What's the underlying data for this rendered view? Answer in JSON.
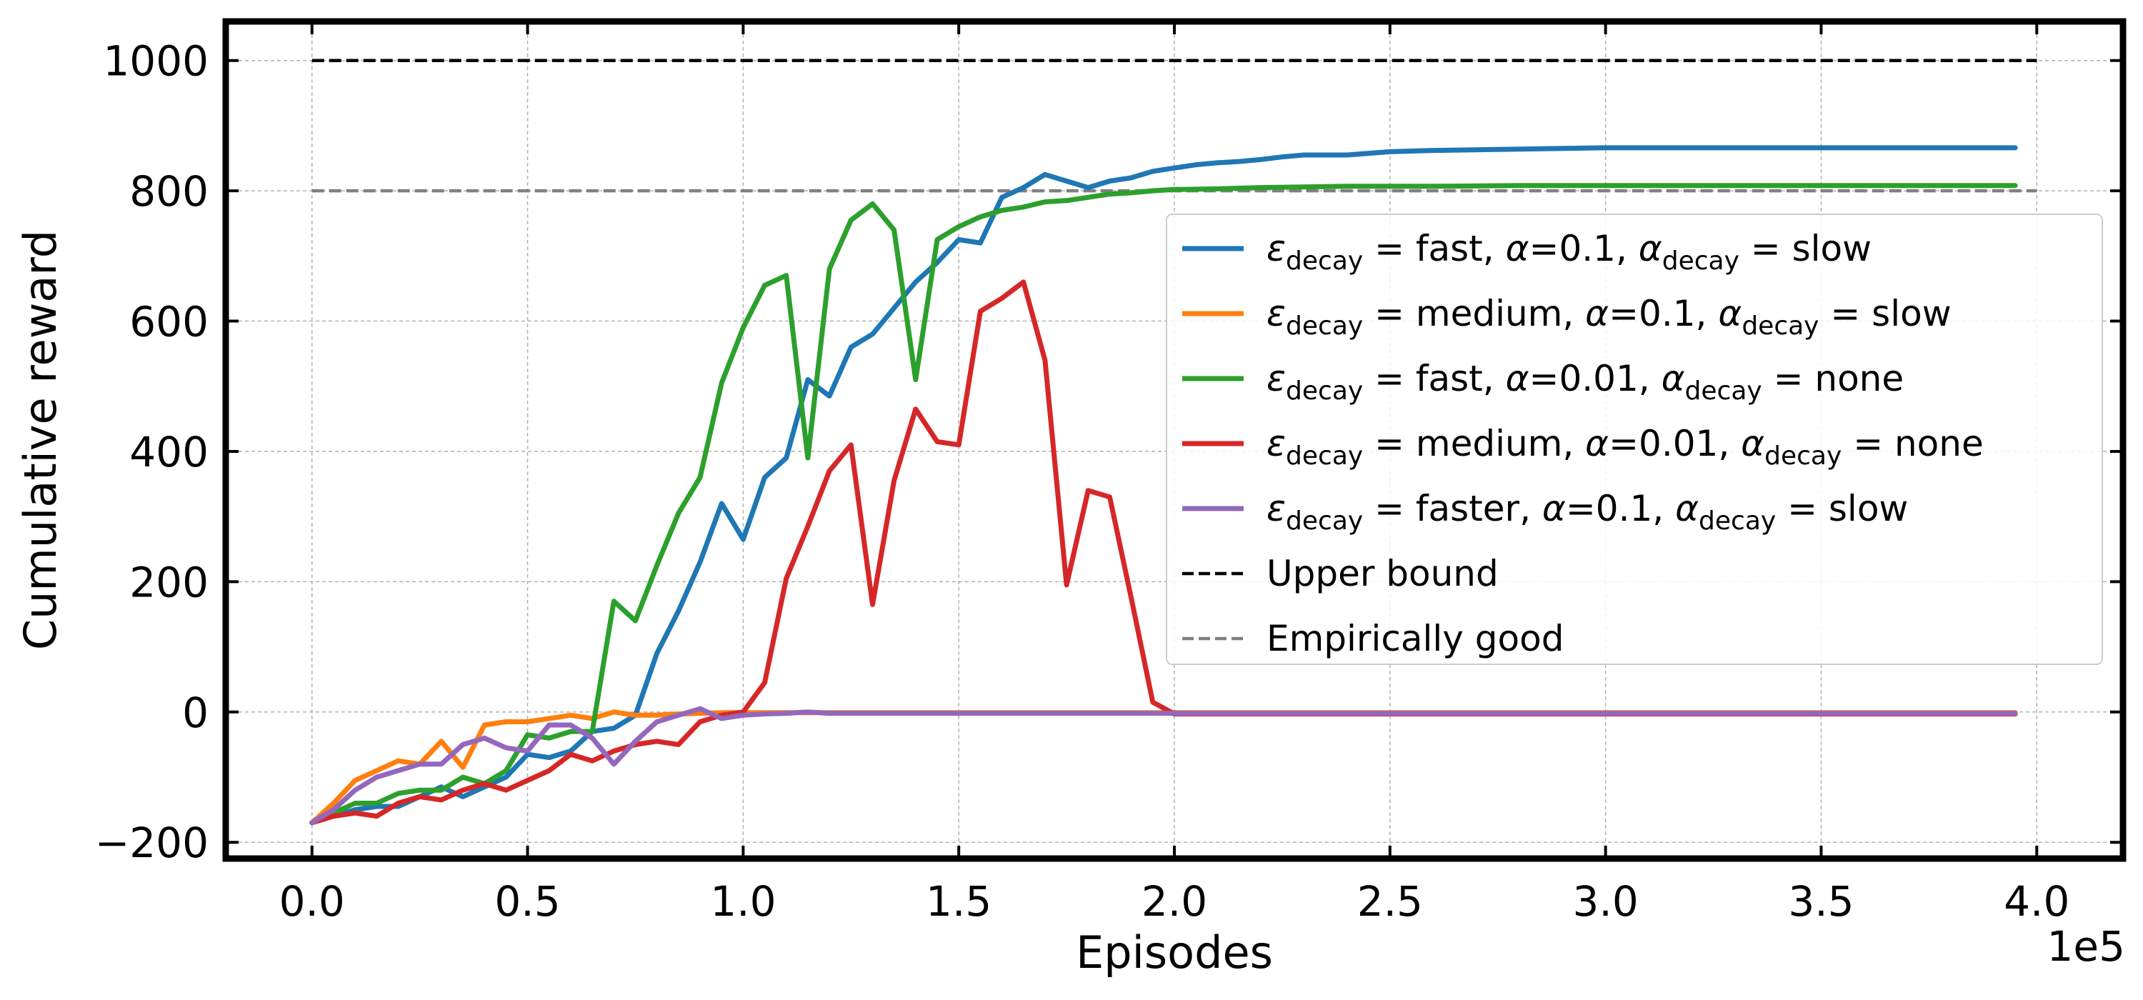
{
  "chart_data": {
    "type": "line",
    "xlabel": "Episodes",
    "ylabel": "Cumulative reward",
    "x_offset_label": "1e5",
    "xlim": [
      -0.2,
      4.2
    ],
    "ylim": [
      -225,
      1060
    ],
    "xticks": [
      0.0,
      0.5,
      1.0,
      1.5,
      2.0,
      2.5,
      3.0,
      3.5,
      4.0
    ],
    "xtick_labels": [
      "0.0",
      "0.5",
      "1.0",
      "1.5",
      "2.0",
      "2.5",
      "3.0",
      "3.5",
      "4.0"
    ],
    "yticks": [
      -200,
      0,
      200,
      400,
      600,
      800,
      1000
    ],
    "ytick_labels": [
      "−200",
      "0",
      "200",
      "400",
      "600",
      "800",
      "1000"
    ],
    "grid": true,
    "legend_position": "center-right",
    "series": [
      {
        "name": "ε_decay = fast, α=0.1, α_decay = slow",
        "legend_parts": [
          "ε",
          "decay",
          " = fast, ",
          "α",
          "=0.1, ",
          "α",
          "decay",
          " = slow"
        ],
        "color": "#1f77b4",
        "x": [
          0.0,
          0.05,
          0.1,
          0.15,
          0.2,
          0.25,
          0.3,
          0.35,
          0.4,
          0.45,
          0.5,
          0.55,
          0.6,
          0.65,
          0.7,
          0.75,
          0.8,
          0.85,
          0.9,
          0.95,
          1.0,
          1.05,
          1.1,
          1.15,
          1.2,
          1.25,
          1.3,
          1.35,
          1.4,
          1.45,
          1.5,
          1.55,
          1.6,
          1.65,
          1.7,
          1.75,
          1.8,
          1.85,
          1.9,
          1.95,
          2.0,
          2.05,
          2.1,
          2.15,
          2.2,
          2.25,
          2.3,
          2.35,
          2.4,
          2.5,
          2.6,
          2.8,
          3.0,
          3.2,
          3.4,
          3.6,
          3.8,
          3.95
        ],
        "y": [
          -170,
          -160,
          -150,
          -145,
          -145,
          -130,
          -115,
          -130,
          -115,
          -100,
          -65,
          -70,
          -60,
          -30,
          -25,
          -5,
          90,
          155,
          230,
          320,
          265,
          360,
          390,
          510,
          485,
          560,
          580,
          620,
          660,
          690,
          725,
          720,
          790,
          805,
          825,
          815,
          805,
          815,
          820,
          830,
          835,
          840,
          843,
          845,
          848,
          852,
          855,
          855,
          855,
          860,
          862,
          864,
          866,
          866,
          866,
          866,
          866,
          866
        ]
      },
      {
        "name": "ε_decay = medium, α=0.1, α_decay = slow",
        "legend_parts": [
          "ε",
          "decay",
          " = medium, ",
          "α",
          "=0.1, ",
          "α",
          "decay",
          " = slow"
        ],
        "color": "#ff7f0e",
        "x": [
          0.0,
          0.05,
          0.1,
          0.15,
          0.2,
          0.25,
          0.3,
          0.35,
          0.4,
          0.45,
          0.5,
          0.55,
          0.6,
          0.65,
          0.7,
          0.75,
          0.8,
          0.85,
          0.9,
          0.95,
          1.0,
          1.1,
          1.2,
          1.5,
          2.0,
          3.0,
          3.95
        ],
        "y": [
          -170,
          -140,
          -105,
          -90,
          -75,
          -80,
          -45,
          -85,
          -20,
          -15,
          -15,
          -10,
          -5,
          -10,
          0,
          -5,
          -5,
          -3,
          -2,
          -1,
          -1,
          -1,
          -1,
          -1,
          -1,
          -1,
          -1
        ]
      },
      {
        "name": "ε_decay = fast, α=0.01, α_decay = none",
        "legend_parts": [
          "ε",
          "decay",
          " = fast, ",
          "α",
          "=0.01, ",
          "α",
          "decay",
          " = none"
        ],
        "color": "#2ca02c",
        "x": [
          0.0,
          0.05,
          0.1,
          0.15,
          0.2,
          0.25,
          0.3,
          0.35,
          0.4,
          0.45,
          0.5,
          0.55,
          0.6,
          0.65,
          0.7,
          0.75,
          0.8,
          0.85,
          0.9,
          0.95,
          1.0,
          1.05,
          1.1,
          1.15,
          1.2,
          1.25,
          1.3,
          1.35,
          1.4,
          1.45,
          1.5,
          1.55,
          1.6,
          1.65,
          1.7,
          1.75,
          1.8,
          1.85,
          1.9,
          1.95,
          2.0,
          2.1,
          2.2,
          2.3,
          2.4,
          2.6,
          2.8,
          3.0,
          3.2,
          3.4,
          3.6,
          3.8,
          3.95
        ],
        "y": [
          -170,
          -155,
          -140,
          -140,
          -125,
          -120,
          -120,
          -100,
          -110,
          -90,
          -35,
          -40,
          -30,
          -30,
          170,
          140,
          225,
          305,
          360,
          505,
          590,
          655,
          670,
          390,
          680,
          755,
          780,
          740,
          510,
          725,
          745,
          760,
          770,
          775,
          783,
          785,
          790,
          795,
          797,
          800,
          802,
          803,
          805,
          806,
          807,
          807,
          808,
          808,
          808,
          808,
          808,
          808,
          808
        ]
      },
      {
        "name": "ε_decay = medium, α=0.01, α_decay = none",
        "legend_parts": [
          "ε",
          "decay",
          " = medium, ",
          "α",
          "=0.01, ",
          "α",
          "decay",
          " = none"
        ],
        "color": "#d62728",
        "x": [
          0.0,
          0.05,
          0.1,
          0.15,
          0.2,
          0.25,
          0.3,
          0.35,
          0.4,
          0.45,
          0.5,
          0.55,
          0.6,
          0.65,
          0.7,
          0.75,
          0.8,
          0.85,
          0.9,
          0.95,
          1.0,
          1.05,
          1.1,
          1.15,
          1.2,
          1.25,
          1.3,
          1.35,
          1.4,
          1.45,
          1.5,
          1.55,
          1.6,
          1.65,
          1.7,
          1.75,
          1.8,
          1.85,
          1.9,
          1.95,
          2.0,
          2.1,
          2.5,
          3.0,
          3.5,
          3.95
        ],
        "y": [
          -170,
          -160,
          -155,
          -160,
          -140,
          -130,
          -135,
          -120,
          -110,
          -120,
          -105,
          -90,
          -65,
          -75,
          -60,
          -50,
          -45,
          -50,
          -15,
          -5,
          0,
          45,
          205,
          285,
          370,
          410,
          165,
          355,
          465,
          415,
          410,
          615,
          635,
          660,
          540,
          195,
          340,
          330,
          175,
          15,
          -3,
          -3,
          -3,
          -3,
          -3,
          -3
        ]
      },
      {
        "name": "ε_decay = faster, α=0.1, α_decay = slow",
        "legend_parts": [
          "ε",
          "decay",
          " = faster, ",
          "α",
          "=0.1, ",
          "α",
          "decay",
          " = slow"
        ],
        "color": "#9467bd",
        "x": [
          0.0,
          0.05,
          0.1,
          0.15,
          0.2,
          0.25,
          0.3,
          0.35,
          0.4,
          0.45,
          0.5,
          0.55,
          0.6,
          0.65,
          0.7,
          0.75,
          0.8,
          0.85,
          0.9,
          0.95,
          1.0,
          1.05,
          1.1,
          1.15,
          1.2,
          1.5,
          2.0,
          3.0,
          3.95
        ],
        "y": [
          -170,
          -150,
          -120,
          -100,
          -90,
          -80,
          -80,
          -50,
          -40,
          -55,
          -60,
          -20,
          -20,
          -40,
          -80,
          -45,
          -15,
          -5,
          5,
          -10,
          -5,
          -3,
          -2,
          0,
          -2,
          -2,
          -2,
          -2,
          -2
        ]
      }
    ],
    "reference_lines": [
      {
        "name": "Upper bound",
        "y": 1000,
        "x_range": [
          0.0,
          4.0
        ],
        "color": "#000000",
        "style": "dashed"
      },
      {
        "name": "Empirically good",
        "y": 800,
        "x_range": [
          0.0,
          4.0
        ],
        "color": "#808080",
        "style": "dashed"
      }
    ]
  }
}
